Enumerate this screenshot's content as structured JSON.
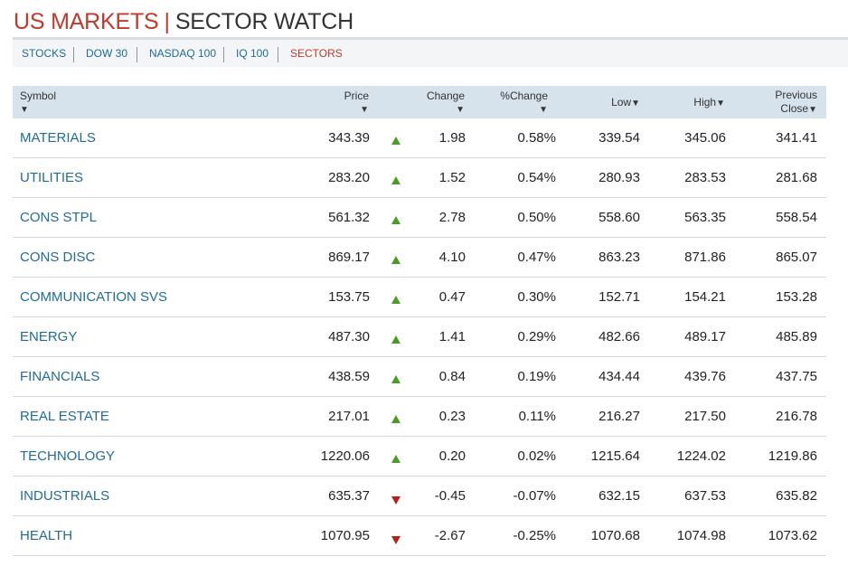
{
  "header": {
    "title_part1": "US MARKETS",
    "title_sep": "|",
    "title_part2": "SECTOR WATCH"
  },
  "nav": {
    "items": [
      {
        "label": "STOCKS",
        "active": false
      },
      {
        "label": "DOW 30",
        "active": false
      },
      {
        "label": "NASDAQ 100",
        "active": false
      },
      {
        "label": "IQ 100",
        "active": false
      },
      {
        "label": "SECTORS",
        "active": true
      }
    ]
  },
  "table": {
    "columns": {
      "symbol": "Symbol",
      "price": "Price",
      "change": "Change",
      "pct_change": "%Change",
      "low": "Low",
      "high": "High",
      "prev_close_1": "Previous",
      "prev_close_2": "Close"
    },
    "sort_icon": "sort-down-arrow",
    "rows": [
      {
        "symbol": "MATERIALS",
        "price": "343.39",
        "direction": "up",
        "change": "1.98",
        "pct_change": "0.58%",
        "low": "339.54",
        "high": "345.06",
        "prev_close": "341.41"
      },
      {
        "symbol": "UTILITIES",
        "price": "283.20",
        "direction": "up",
        "change": "1.52",
        "pct_change": "0.54%",
        "low": "280.93",
        "high": "283.53",
        "prev_close": "281.68"
      },
      {
        "symbol": "CONS STPL",
        "price": "561.32",
        "direction": "up",
        "change": "2.78",
        "pct_change": "0.50%",
        "low": "558.60",
        "high": "563.35",
        "prev_close": "558.54"
      },
      {
        "symbol": "CONS DISC",
        "price": "869.17",
        "direction": "up",
        "change": "4.10",
        "pct_change": "0.47%",
        "low": "863.23",
        "high": "871.86",
        "prev_close": "865.07"
      },
      {
        "symbol": "COMMUNICATION SVS",
        "price": "153.75",
        "direction": "up",
        "change": "0.47",
        "pct_change": "0.30%",
        "low": "152.71",
        "high": "154.21",
        "prev_close": "153.28"
      },
      {
        "symbol": "ENERGY",
        "price": "487.30",
        "direction": "up",
        "change": "1.41",
        "pct_change": "0.29%",
        "low": "482.66",
        "high": "489.17",
        "prev_close": "485.89"
      },
      {
        "symbol": "FINANCIALS",
        "price": "438.59",
        "direction": "up",
        "change": "0.84",
        "pct_change": "0.19%",
        "low": "434.44",
        "high": "439.76",
        "prev_close": "437.75"
      },
      {
        "symbol": "REAL ESTATE",
        "price": "217.01",
        "direction": "up",
        "change": "0.23",
        "pct_change": "0.11%",
        "low": "216.27",
        "high": "217.50",
        "prev_close": "216.78"
      },
      {
        "symbol": "TECHNOLOGY",
        "price": "1220.06",
        "direction": "up",
        "change": "0.20",
        "pct_change": "0.02%",
        "low": "1215.64",
        "high": "1224.02",
        "prev_close": "1219.86"
      },
      {
        "symbol": "INDUSTRIALS",
        "price": "635.37",
        "direction": "down",
        "change": "-0.45",
        "pct_change": "-0.07%",
        "low": "632.15",
        "high": "637.53",
        "prev_close": "635.82"
      },
      {
        "symbol": "HEALTH",
        "price": "1070.95",
        "direction": "down",
        "change": "-2.67",
        "pct_change": "-0.25%",
        "low": "1070.68",
        "high": "1074.98",
        "prev_close": "1073.62"
      }
    ]
  },
  "colors": {
    "brand_red": "#c0392b",
    "link_blue": "#1f6b99",
    "up_green": "#4c9a2a",
    "down_red": "#b5211b",
    "header_bg": "#d6e2ec"
  }
}
